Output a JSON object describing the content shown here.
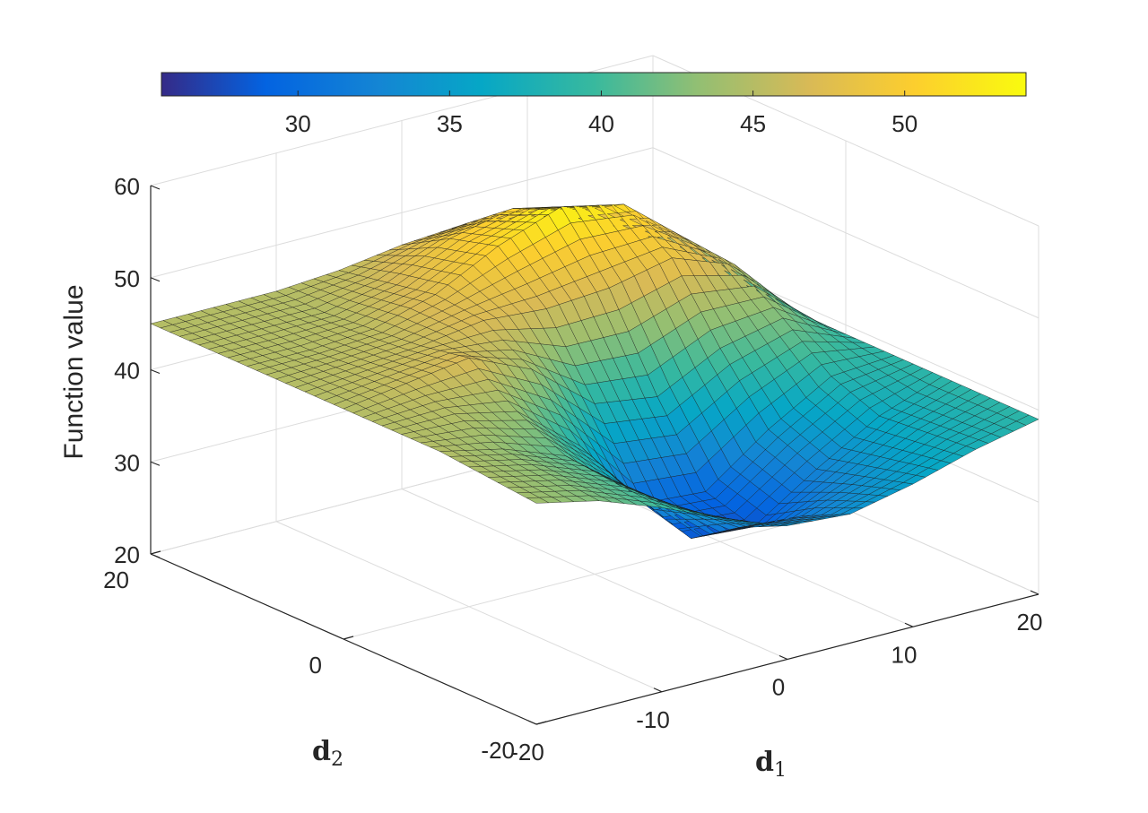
{
  "chart_data": {
    "type": "surface",
    "title": "",
    "xlabel": "d",
    "xlabel_subscript": "1",
    "ylabel": "d",
    "ylabel_subscript": "2",
    "zlabel": "Function value",
    "xlim": [
      -20,
      20
    ],
    "ylim": [
      -20,
      20
    ],
    "zlim": [
      20,
      60
    ],
    "x_ticks": [
      -20,
      -10,
      0,
      10,
      20
    ],
    "y_ticks": [
      -20,
      0,
      20
    ],
    "z_ticks": [
      20,
      30,
      40,
      50,
      60
    ],
    "grid": true,
    "colormap": "parula",
    "colorbar": {
      "placement": "top",
      "range": [
        25.5,
        54
      ],
      "ticks": [
        30,
        35,
        40,
        45,
        50
      ]
    },
    "surface_samples": {
      "x": [
        -20,
        -15,
        -10,
        -5,
        0,
        5,
        10,
        15,
        20
      ],
      "y": [
        -20,
        -15,
        -10,
        -5,
        0,
        5,
        10,
        15,
        20
      ],
      "z": [
        [
          44.0,
          42.5,
          40.0,
          37.0,
          34.5,
          34.0,
          35.5,
          37.5,
          39.0
        ],
        [
          44.5,
          43.0,
          40.5,
          36.0,
          32.0,
          31.5,
          34.0,
          37.0,
          39.0
        ],
        [
          45.0,
          43.5,
          41.0,
          35.5,
          28.5,
          28.0,
          32.5,
          36.5,
          39.0
        ],
        [
          45.0,
          45.0,
          43.5,
          38.0,
          30.0,
          29.5,
          34.5,
          38.5,
          39.0
        ],
        [
          45.0,
          46.0,
          47.0,
          44.0,
          38.5,
          37.5,
          41.0,
          42.5,
          39.0
        ],
        [
          45.0,
          45.5,
          46.0,
          47.0,
          46.5,
          47.0,
          48.5,
          46.0,
          39.0
        ],
        [
          45.0,
          45.0,
          45.5,
          47.5,
          51.0,
          53.5,
          52.0,
          46.5,
          39.0
        ],
        [
          45.0,
          45.0,
          45.0,
          46.5,
          49.5,
          51.0,
          49.0,
          44.5,
          39.0
        ],
        [
          45.0,
          45.0,
          45.0,
          45.5,
          46.5,
          47.0,
          45.0,
          42.0,
          39.0
        ]
      ]
    }
  }
}
